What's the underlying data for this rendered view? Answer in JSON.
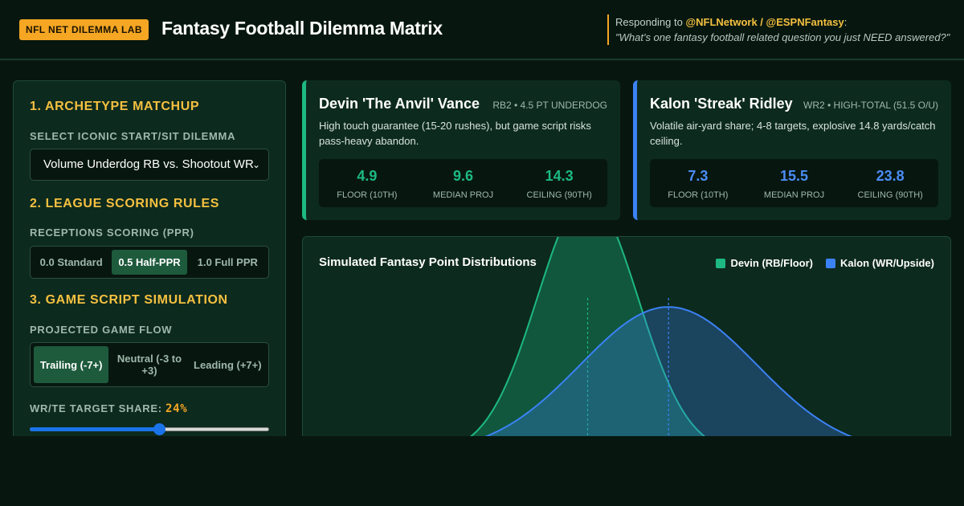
{
  "header": {
    "badge": "NFL NET DILEMMA LAB",
    "title": "Fantasy Football Dilemma Matrix",
    "responding_prefix": "Responding to ",
    "handles": "@NFLNetwork / @ESPNFantasy",
    "responding_suffix": ":",
    "quote": "\"What's one fantasy football related question you just NEED answered?\""
  },
  "controls": {
    "archetype_title": "1. ARCHETYPE MATCHUP",
    "dilemma_label": "SELECT ICONIC START/SIT DILEMMA",
    "dilemma_value": "Volume Underdog RB vs. Shootout WR",
    "scoring_title": "2. LEAGUE SCORING RULES",
    "ppr_label": "RECEPTIONS SCORING (PPR)",
    "ppr_options": [
      "0.0 Standard",
      "0.5 Half-PPR",
      "1.0 Full PPR"
    ],
    "ppr_selected": 1,
    "script_title": "3. GAME SCRIPT SIMULATION",
    "flow_label": "PROJECTED GAME FLOW",
    "flow_options": [
      "Trailing (-7+)",
      "Neutral (-3 to +3)",
      "Leading (+7+)"
    ],
    "flow_selected": 0,
    "target_label": "WR/TE TARGET SHARE:",
    "target_value": "24%",
    "target_fraction": 0.54
  },
  "players": [
    {
      "name": "Devin 'The Anvil' Vance",
      "role": "RB2 • 4.5 PT UNDERDOG",
      "desc": "High touch guarantee (15-20 rushes), but game script risks pass-heavy abandon.",
      "stats": [
        {
          "value": "4.9",
          "label": "FLOOR (10TH)"
        },
        {
          "value": "9.6",
          "label": "MEDIAN PROJ"
        },
        {
          "value": "14.3",
          "label": "CEILING (90TH)"
        }
      ]
    },
    {
      "name": "Kalon 'Streak' Ridley",
      "role": "WR2 • HIGH-TOTAL (51.5 O/U)",
      "desc": "Volatile air-yard share; 4-8 targets, explosive 14.8 yards/catch ceiling.",
      "stats": [
        {
          "value": "7.3",
          "label": "FLOOR (10TH)"
        },
        {
          "value": "15.5",
          "label": "MEDIAN PROJ"
        },
        {
          "value": "23.8",
          "label": "CEILING (90TH)"
        }
      ]
    }
  ],
  "chart": {
    "title": "Simulated Fantasy Point Distributions",
    "colors": {
      "devin": "#1db980",
      "kalon": "#3b82f6"
    }
  },
  "chart_data": {
    "type": "area",
    "title": "Simulated Fantasy Point Distributions",
    "series": [
      {
        "name": "Devin (RB/Floor)",
        "mean": 9.6,
        "p10": 4.9,
        "p90": 14.3
      },
      {
        "name": "Kalon (WR/Upside)",
        "mean": 15.5,
        "p10": 7.3,
        "p90": 23.8
      }
    ],
    "xlim": [
      -10,
      35
    ],
    "legend": "top-right",
    "grid": false
  }
}
